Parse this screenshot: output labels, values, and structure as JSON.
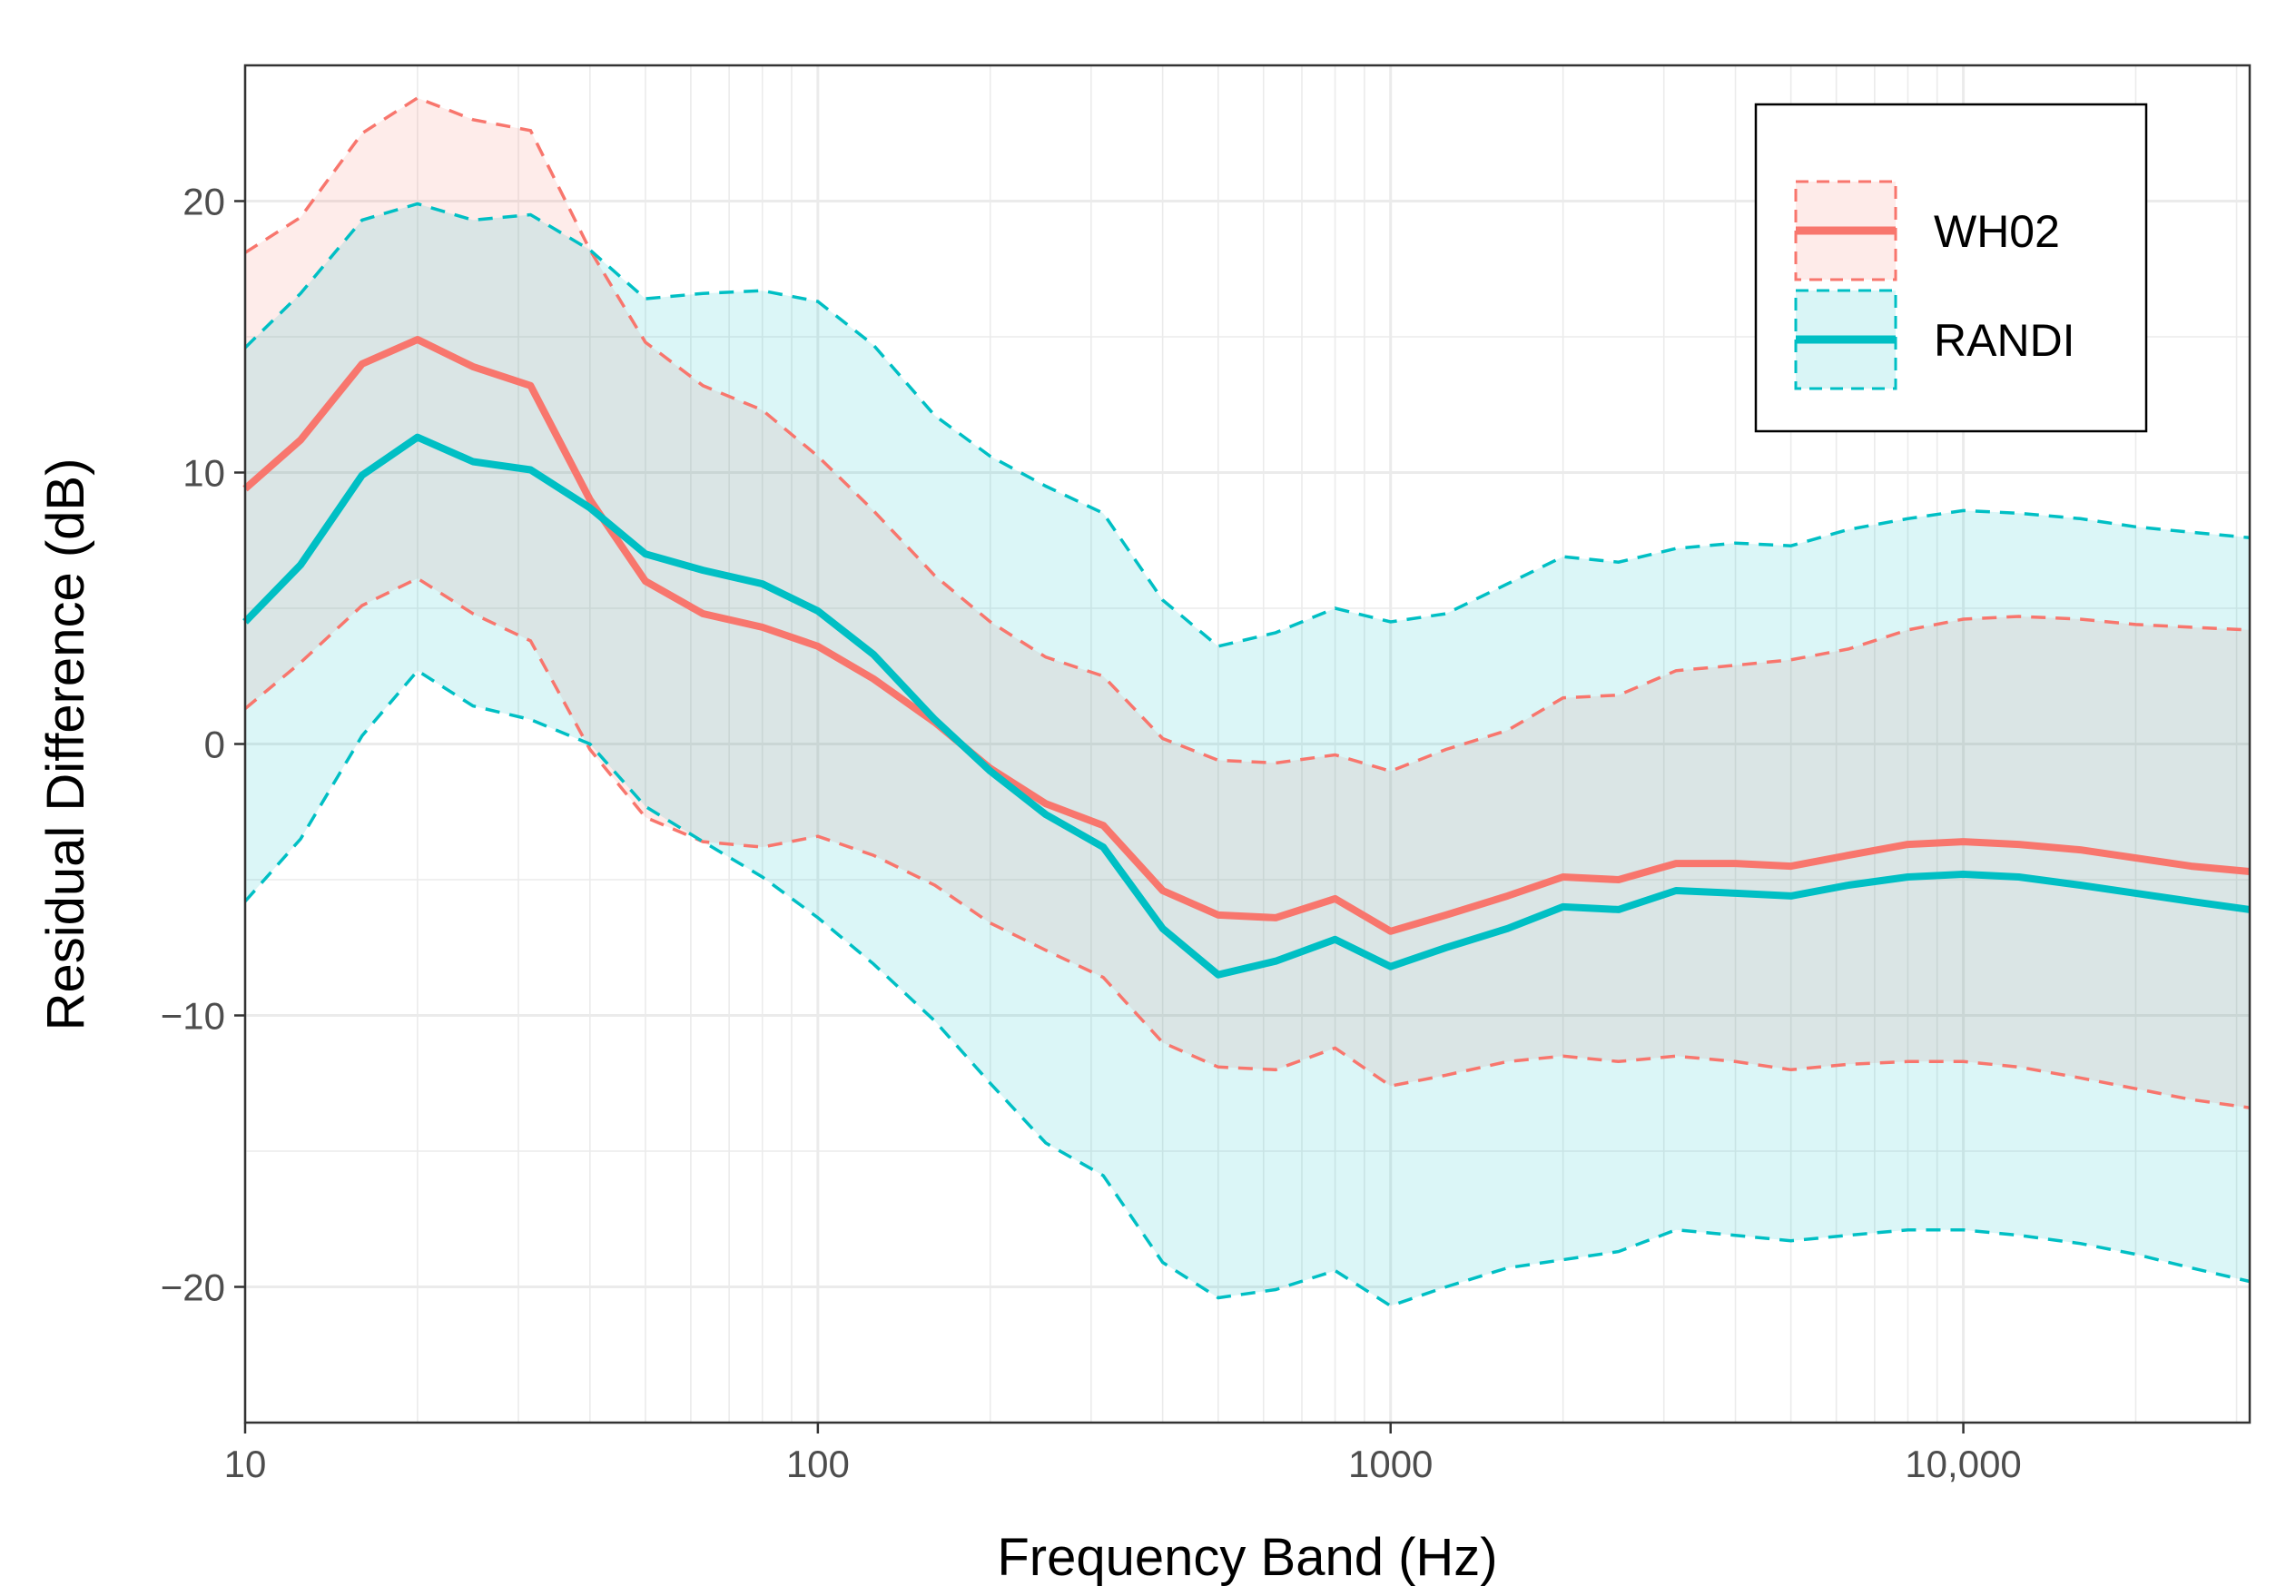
{
  "chart_data": {
    "type": "line",
    "title": "",
    "xlabel": "Frequency Band (Hz)",
    "ylabel": "Residual Difference (dB)",
    "xscale": "log",
    "xlim": [
      10,
      31623
    ],
    "ylim": [
      -25,
      25
    ],
    "grid": true,
    "legend_position": "top-right",
    "x_ticks": [
      {
        "value": 10,
        "label": "10"
      },
      {
        "value": 100,
        "label": "100"
      },
      {
        "value": 1000,
        "label": "1000"
      },
      {
        "value": 10000,
        "label": "10,000"
      }
    ],
    "y_ticks": [
      {
        "value": 20,
        "label": "20"
      },
      {
        "value": 10,
        "label": "10"
      },
      {
        "value": 0,
        "label": "0"
      },
      {
        "value": -10,
        "label": "−10"
      },
      {
        "value": -20,
        "label": "−20"
      }
    ],
    "x": [
      10,
      12.5,
      16,
      20,
      25,
      31.5,
      40,
      50,
      63,
      80,
      100,
      125,
      160,
      200,
      250,
      315,
      400,
      500,
      630,
      800,
      1000,
      1250,
      1600,
      2000,
      2500,
      3150,
      4000,
      5000,
      6300,
      8000,
      10000,
      12500,
      16000,
      20000,
      25000,
      31623
    ],
    "series": [
      {
        "name": "WH02",
        "color": "#F8766D",
        "mean": [
          9.4,
          11.2,
          14.0,
          14.9,
          13.9,
          13.2,
          9.0,
          6.0,
          4.8,
          4.3,
          3.6,
          2.4,
          0.8,
          -0.9,
          -2.2,
          -3.0,
          -5.4,
          -6.3,
          -6.4,
          -5.7,
          -6.9,
          -6.3,
          -5.6,
          -4.9,
          -5.0,
          -4.4,
          -4.4,
          -4.5,
          -4.1,
          -3.7,
          -3.6,
          -3.7,
          -3.9,
          -4.2,
          -4.5,
          -4.7
        ],
        "upper": [
          18.1,
          19.4,
          22.5,
          23.8,
          23.0,
          22.6,
          18.2,
          14.8,
          13.2,
          12.3,
          10.6,
          8.6,
          6.2,
          4.5,
          3.2,
          2.5,
          0.2,
          -0.6,
          -0.7,
          -0.4,
          -1.0,
          -0.2,
          0.5,
          1.7,
          1.8,
          2.7,
          2.9,
          3.1,
          3.5,
          4.2,
          4.6,
          4.7,
          4.6,
          4.4,
          4.3,
          4.2
        ],
        "lower": [
          1.3,
          3.0,
          5.1,
          6.1,
          4.8,
          3.8,
          -0.2,
          -2.7,
          -3.6,
          -3.8,
          -3.4,
          -4.1,
          -5.2,
          -6.6,
          -7.6,
          -8.6,
          -11.0,
          -11.9,
          -12.0,
          -11.2,
          -12.6,
          -12.2,
          -11.7,
          -11.5,
          -11.7,
          -11.5,
          -11.7,
          -12.0,
          -11.8,
          -11.7,
          -11.7,
          -11.9,
          -12.3,
          -12.7,
          -13.1,
          -13.4
        ]
      },
      {
        "name": "RANDI",
        "color": "#00BFC4",
        "mean": [
          4.5,
          6.6,
          9.9,
          11.3,
          10.4,
          10.1,
          8.7,
          7.0,
          6.4,
          5.9,
          4.9,
          3.3,
          0.9,
          -1.0,
          -2.6,
          -3.8,
          -6.8,
          -8.5,
          -8.0,
          -7.2,
          -8.2,
          -7.5,
          -6.8,
          -6.0,
          -6.1,
          -5.4,
          -5.5,
          -5.6,
          -5.2,
          -4.9,
          -4.8,
          -4.9,
          -5.2,
          -5.5,
          -5.8,
          -6.1
        ],
        "upper": [
          14.6,
          16.6,
          19.3,
          19.9,
          19.3,
          19.5,
          18.2,
          16.4,
          16.6,
          16.7,
          16.3,
          14.7,
          12.1,
          10.6,
          9.5,
          8.5,
          5.3,
          3.6,
          4.1,
          5.0,
          4.5,
          4.8,
          5.9,
          6.9,
          6.7,
          7.2,
          7.4,
          7.3,
          7.9,
          8.3,
          8.6,
          8.5,
          8.3,
          8.0,
          7.8,
          7.6
        ],
        "lower": [
          -5.8,
          -3.5,
          0.3,
          2.7,
          1.4,
          0.9,
          0.0,
          -2.3,
          -3.6,
          -4.9,
          -6.4,
          -8.1,
          -10.2,
          -12.5,
          -14.7,
          -15.9,
          -19.1,
          -20.4,
          -20.1,
          -19.4,
          -20.7,
          -20.0,
          -19.3,
          -19.0,
          -18.7,
          -17.9,
          -18.1,
          -18.3,
          -18.1,
          -17.9,
          -17.9,
          -18.1,
          -18.4,
          -18.8,
          -19.3,
          -19.8
        ]
      }
    ]
  }
}
